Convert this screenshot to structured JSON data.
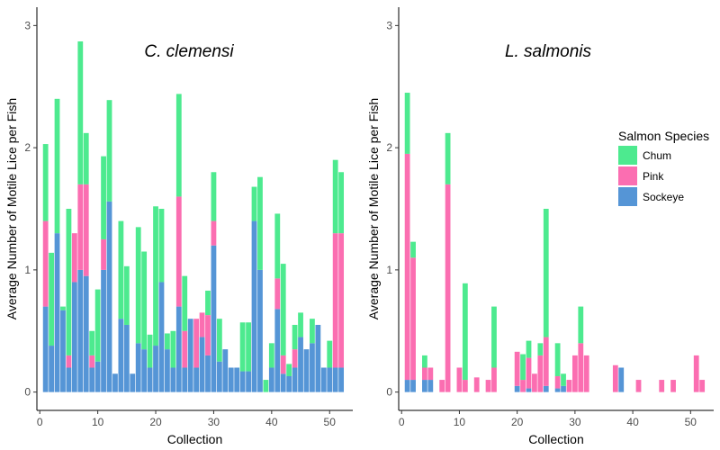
{
  "chart_data": [
    {
      "type": "bar",
      "stacked": true,
      "title": "C. clemensi",
      "xlabel": "Collection",
      "ylabel": "Average Number of Motile Lice per Fish",
      "xlim": [
        -0.5,
        54
      ],
      "ylim": [
        -0.15,
        3.15
      ],
      "xticks": [
        0,
        10,
        20,
        30,
        40,
        50
      ],
      "yticks": [
        0,
        1,
        2,
        3
      ],
      "grid": false,
      "x": [
        1,
        2,
        3,
        4,
        5,
        6,
        7,
        8,
        9,
        10,
        11,
        12,
        13,
        14,
        15,
        16,
        17,
        18,
        19,
        20,
        21,
        22,
        23,
        24,
        25,
        26,
        27,
        28,
        29,
        30,
        31,
        32,
        33,
        34,
        35,
        36,
        37,
        38,
        39,
        40,
        41,
        42,
        43,
        44,
        45,
        46,
        47,
        48,
        49,
        50,
        51,
        52
      ],
      "series": [
        {
          "name": "Sockeye",
          "values": [
            0.7,
            0.38,
            1.3,
            0.67,
            0.2,
            0.9,
            1.0,
            0.95,
            0.2,
            0.25,
            1.0,
            1.56,
            0.15,
            0.6,
            0.55,
            0.15,
            0.4,
            0.35,
            0.2,
            0.38,
            0.9,
            0.35,
            0.2,
            0.7,
            0.2,
            0.6,
            0.2,
            0.45,
            0.3,
            1.2,
            0.25,
            0.35,
            0.2,
            0.2,
            0.17,
            0.17,
            1.4,
            1.0,
            0.0,
            0.2,
            0.68,
            0.15,
            0.13,
            0.2,
            0.45,
            0.35,
            0.4,
            0.55,
            0.2,
            0.2,
            0.2,
            0.2
          ]
        },
        {
          "name": "Pink",
          "values": [
            0.7,
            0.0,
            0.0,
            0.0,
            0.1,
            0.4,
            0.7,
            0.75,
            0.1,
            0.0,
            0.25,
            0.0,
            0.0,
            0.0,
            0.0,
            0.0,
            0.0,
            0.0,
            0.0,
            0.0,
            0.0,
            0.0,
            0.0,
            0.9,
            0.3,
            0.0,
            0.4,
            0.2,
            0.33,
            0.2,
            0.0,
            0.0,
            0.0,
            0.0,
            0.0,
            0.0,
            0.0,
            0.0,
            0.0,
            0.0,
            0.25,
            0.15,
            0.0,
            0.15,
            0.0,
            0.0,
            0.0,
            0.0,
            0.0,
            0.0,
            1.1,
            1.1
          ]
        },
        {
          "name": "Chum",
          "values": [
            0.63,
            0.76,
            1.1,
            0.03,
            1.2,
            0.0,
            1.17,
            0.42,
            0.2,
            0.59,
            0.68,
            0.83,
            0.0,
            0.8,
            0.48,
            0.0,
            0.95,
            0.8,
            0.27,
            1.14,
            0.6,
            0.13,
            0.3,
            0.84,
            0.45,
            0.0,
            0.0,
            0.0,
            0.2,
            0.4,
            0.35,
            0.0,
            0.0,
            0.0,
            0.4,
            0.4,
            0.28,
            0.76,
            0.1,
            0.2,
            0.53,
            0.75,
            0.1,
            0.2,
            0.2,
            0.0,
            0.2,
            0.0,
            0.0,
            0.22,
            0.6,
            0.5
          ]
        }
      ]
    },
    {
      "type": "bar",
      "stacked": true,
      "title": "L. salmonis",
      "xlabel": "Collection",
      "ylabel": "Average Number of Motile Lice per Fish",
      "xlim": [
        -0.5,
        54
      ],
      "ylim": [
        -0.15,
        3.15
      ],
      "xticks": [
        0,
        10,
        20,
        30,
        40,
        50
      ],
      "yticks": [
        0,
        1,
        2,
        3
      ],
      "grid": false,
      "x": [
        1,
        2,
        3,
        4,
        5,
        6,
        7,
        8,
        9,
        10,
        11,
        12,
        13,
        14,
        15,
        16,
        17,
        18,
        19,
        20,
        21,
        22,
        23,
        24,
        25,
        26,
        27,
        28,
        29,
        30,
        31,
        32,
        33,
        34,
        35,
        36,
        37,
        38,
        39,
        40,
        41,
        42,
        43,
        44,
        45,
        46,
        47,
        48,
        49,
        50,
        51,
        52
      ],
      "series": [
        {
          "name": "Sockeye",
          "values": [
            0.1,
            0.1,
            0,
            0.1,
            0.1,
            0,
            0,
            0,
            0,
            0,
            0,
            0,
            0,
            0,
            0,
            0,
            0,
            0,
            0,
            0.05,
            0,
            0.03,
            0,
            0,
            0.05,
            0,
            0.03,
            0.05,
            0,
            0,
            0,
            0,
            0,
            0,
            0,
            0,
            0,
            0.2,
            0,
            0,
            0,
            0,
            0,
            0,
            0,
            0,
            0,
            0,
            0,
            0,
            0,
            0
          ]
        },
        {
          "name": "Pink",
          "values": [
            1.85,
            1.0,
            0,
            0.1,
            0.1,
            0,
            0.1,
            1.7,
            0,
            0.2,
            0.1,
            0,
            0.12,
            0,
            0.1,
            0.2,
            0,
            0,
            0,
            0.28,
            0.1,
            0.25,
            0.15,
            0.3,
            0.4,
            0,
            0.1,
            0,
            0.1,
            0.3,
            0.4,
            0.3,
            0,
            0,
            0,
            0,
            0.22,
            0,
            0,
            0,
            0.1,
            0,
            0,
            0,
            0.1,
            0,
            0.1,
            0,
            0,
            0,
            0.3,
            0.1
          ]
        },
        {
          "name": "Chum",
          "values": [
            0.5,
            0.13,
            0,
            0.1,
            0,
            0,
            0,
            0.42,
            0,
            0,
            0.79,
            0,
            0,
            0,
            0,
            0.5,
            0,
            0,
            0,
            0,
            0.21,
            0.14,
            0,
            0.1,
            1.05,
            0,
            0.27,
            0.1,
            0,
            0,
            0.3,
            0,
            0,
            0,
            0,
            0,
            0,
            0,
            0,
            0,
            0,
            0,
            0,
            0,
            0,
            0,
            0,
            0,
            0,
            0,
            0,
            0
          ]
        }
      ]
    }
  ],
  "legend": {
    "title": "Salmon Species",
    "items": [
      {
        "label": "Chum",
        "color": "#4dea8f"
      },
      {
        "label": "Pink",
        "color": "#fb6eb1"
      },
      {
        "label": "Sockeye",
        "color": "#5595d6"
      }
    ]
  },
  "colors": {
    "Chum": "#4dea8f",
    "Pink": "#fb6eb1",
    "Sockeye": "#5595d6"
  }
}
